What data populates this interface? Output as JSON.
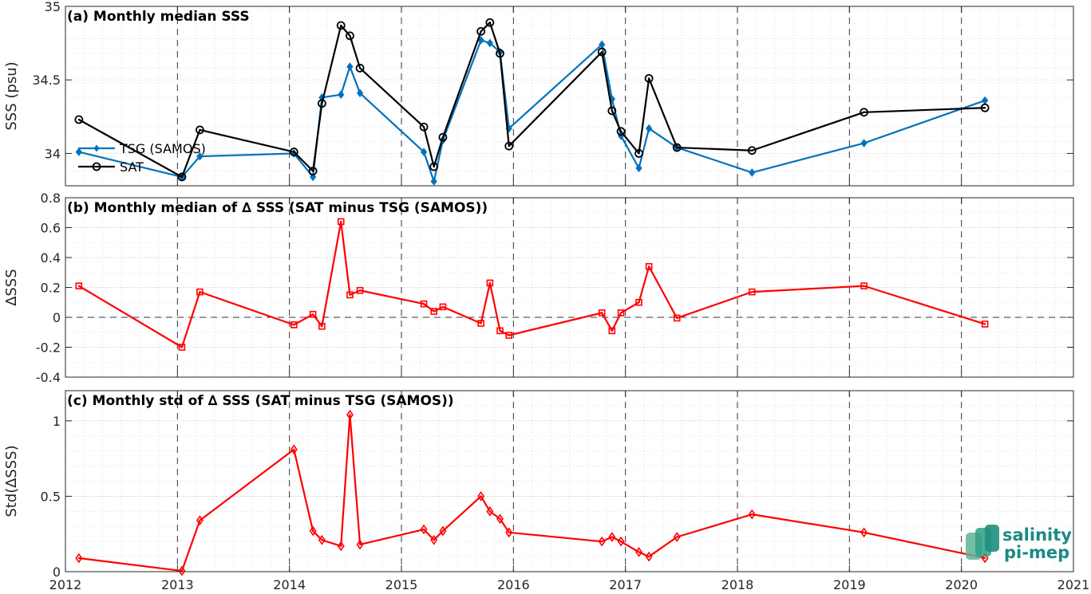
{
  "chart_data": [
    {
      "type": "line",
      "title": "(a) Monthly median SSS",
      "ylabel": "SSS (psu)",
      "xlim": [
        2012,
        2021
      ],
      "ylim": [
        33.78,
        35
      ],
      "yticks": [
        34,
        34.5,
        35
      ],
      "ytick_labels": [
        "34",
        "34.5",
        "35"
      ],
      "legend": {
        "position": "left",
        "entries": [
          "TSG (SAMOS)",
          "SAT"
        ]
      },
      "series": [
        {
          "name": "TSG (SAMOS)",
          "color": "#0072BD",
          "marker": "diamond-filled",
          "x": [
            2012.12,
            2013.04,
            2013.2,
            2014.04,
            2014.21,
            2014.29,
            2014.46,
            2014.54,
            2014.63,
            2015.2,
            2015.29,
            2015.37,
            2015.71,
            2015.79,
            2015.88,
            2015.96,
            2016.79,
            2016.88,
            2016.96,
            2017.12,
            2017.21,
            2017.46,
            2018.13,
            2019.13,
            2020.21
          ],
          "y": [
            34.01,
            33.84,
            33.98,
            34.0,
            33.84,
            34.38,
            34.4,
            34.59,
            34.41,
            34.01,
            33.81,
            34.09,
            34.77,
            34.75,
            34.69,
            34.17,
            34.74,
            34.37,
            34.12,
            33.9,
            34.17,
            34.04,
            33.87,
            34.07,
            34.36
          ]
        },
        {
          "name": "SAT",
          "color": "#000000",
          "marker": "circle-open",
          "x": [
            2012.12,
            2013.04,
            2013.2,
            2014.04,
            2014.21,
            2014.29,
            2014.46,
            2014.54,
            2014.63,
            2015.2,
            2015.29,
            2015.37,
            2015.71,
            2015.79,
            2015.88,
            2015.96,
            2016.79,
            2016.88,
            2016.96,
            2017.12,
            2017.21,
            2017.46,
            2018.13,
            2019.13,
            2020.21
          ],
          "y": [
            34.23,
            33.84,
            34.16,
            34.01,
            33.88,
            34.34,
            34.87,
            34.8,
            34.58,
            34.18,
            33.91,
            34.11,
            34.83,
            34.89,
            34.68,
            34.05,
            34.69,
            34.29,
            34.15,
            34.0,
            34.51,
            34.04,
            34.02,
            34.28,
            34.31
          ]
        }
      ]
    },
    {
      "type": "line",
      "title": "(b) Monthly median of ∆ SSS (SAT minus TSG (SAMOS))",
      "ylabel": "∆SSS",
      "xlim": [
        2012,
        2021
      ],
      "ylim": [
        -0.4,
        0.8
      ],
      "yticks": [
        -0.4,
        -0.2,
        0,
        0.2,
        0.4,
        0.6,
        0.8
      ],
      "ytick_labels": [
        "-0.4",
        "-0.2",
        "0",
        "0.2",
        "0.4",
        "0.6",
        "0.8"
      ],
      "zero_line": true,
      "series": [
        {
          "color": "#ff0000",
          "marker": "square-open",
          "x": [
            2012.12,
            2013.04,
            2013.2,
            2014.04,
            2014.21,
            2014.29,
            2014.46,
            2014.54,
            2014.63,
            2015.2,
            2015.29,
            2015.37,
            2015.71,
            2015.79,
            2015.88,
            2015.96,
            2016.79,
            2016.88,
            2016.96,
            2017.12,
            2017.21,
            2017.46,
            2018.13,
            2019.13,
            2020.21
          ],
          "y": [
            0.21,
            -0.2,
            0.17,
            -0.05,
            0.02,
            -0.06,
            0.64,
            0.15,
            0.18,
            0.09,
            0.04,
            0.07,
            -0.04,
            0.23,
            -0.09,
            -0.12,
            0.03,
            -0.09,
            0.03,
            0.1,
            0.34,
            -0.005,
            0.17,
            0.21,
            -0.045
          ]
        }
      ]
    },
    {
      "type": "line",
      "title": "(c) Monthly std of ∆ SSS (SAT minus TSG (SAMOS))",
      "ylabel": "Std(∆SSS)",
      "xlabel": "",
      "xlim": [
        2012,
        2021
      ],
      "ylim": [
        0,
        1.2
      ],
      "yticks": [
        0,
        0.5,
        1
      ],
      "ytick_labels": [
        "0",
        "0.5",
        "1"
      ],
      "series": [
        {
          "color": "#ff0000",
          "marker": "diamond-open",
          "x": [
            2012.12,
            2013.04,
            2013.2,
            2014.04,
            2014.21,
            2014.29,
            2014.46,
            2014.54,
            2014.63,
            2015.2,
            2015.29,
            2015.37,
            2015.71,
            2015.79,
            2015.88,
            2015.96,
            2016.79,
            2016.88,
            2016.96,
            2017.12,
            2017.21,
            2017.46,
            2018.13,
            2019.13,
            2020.21
          ],
          "y": [
            0.09,
            0.005,
            0.34,
            0.81,
            0.27,
            0.21,
            0.17,
            1.04,
            0.18,
            0.28,
            0.21,
            0.27,
            0.5,
            0.4,
            0.35,
            0.26,
            0.2,
            0.23,
            0.2,
            0.13,
            0.1,
            0.23,
            0.38,
            0.26,
            0.09
          ]
        }
      ]
    }
  ],
  "xaxis": {
    "ticks": [
      2012,
      2013,
      2014,
      2015,
      2016,
      2017,
      2018,
      2019,
      2020,
      2021
    ],
    "tick_labels": [
      "2012",
      "2013",
      "2014",
      "2015",
      "2016",
      "2017",
      "2018",
      "2019",
      "2020",
      "2021"
    ],
    "dashed_year_lines": [
      2013,
      2014,
      2015,
      2016,
      2017,
      2018,
      2019,
      2020
    ]
  },
  "logo": {
    "line1": "salinity",
    "line2": "pi-mep",
    "color": "#1a8a84"
  }
}
